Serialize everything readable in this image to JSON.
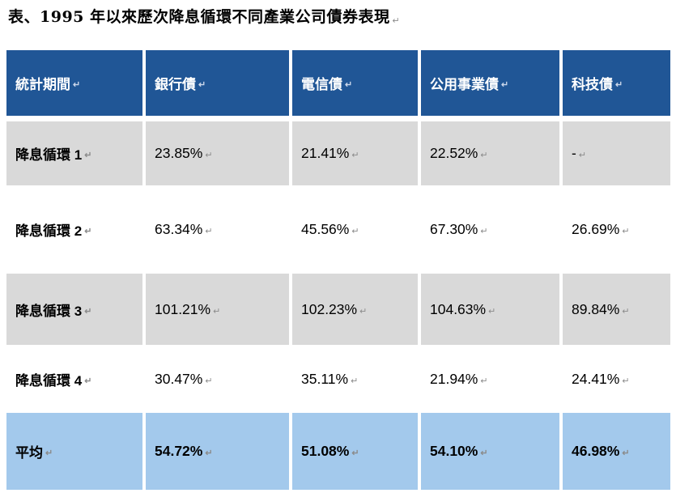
{
  "title": "表、1995 年以來歷次降息循環不同產業公司債券表現",
  "paragraph_mark": "↵",
  "colors": {
    "header_bg": "#205696",
    "header_text": "#ffffff",
    "gray_row_bg": "#d9d9d9",
    "white_row_bg": "#ffffff",
    "average_row_bg": "#a3c9ec",
    "body_text": "#000000"
  },
  "table": {
    "columns": [
      "統計期間",
      "銀行債",
      "電信債",
      "公用事業債",
      "科技債"
    ],
    "rows": [
      {
        "label": "降息循環 1",
        "values": [
          "23.85%",
          "21.41%",
          "22.52%",
          "-"
        ],
        "style": "gray"
      },
      {
        "label": "降息循環 2",
        "values": [
          "63.34%",
          "45.56%",
          "67.30%",
          "26.69%"
        ],
        "style": "white"
      },
      {
        "label": "降息循環 3",
        "values": [
          "101.21%",
          "102.23%",
          "104.63%",
          "89.84%"
        ],
        "style": "gray"
      },
      {
        "label": "降息循環 4",
        "values": [
          "30.47%",
          "35.11%",
          "21.94%",
          "24.41%"
        ],
        "style": "white"
      },
      {
        "label": "平均",
        "values": [
          "54.72%",
          "51.08%",
          "54.10%",
          "46.98%"
        ],
        "style": "average"
      }
    ]
  },
  "chart_data": {
    "type": "table",
    "title": "表、1995 年以來歷次降息循環不同產業公司債券表現",
    "columns": [
      "統計期間",
      "銀行債",
      "電信債",
      "公用事業債",
      "科技債"
    ],
    "rows": [
      [
        "降息循環 1",
        "23.85%",
        "21.41%",
        "22.52%",
        "-"
      ],
      [
        "降息循環 2",
        "63.34%",
        "45.56%",
        "67.30%",
        "26.69%"
      ],
      [
        "降息循環 3",
        "101.21%",
        "102.23%",
        "104.63%",
        "89.84%"
      ],
      [
        "降息循環 4",
        "30.47%",
        "35.11%",
        "21.94%",
        "24.41%"
      ],
      [
        "平均",
        "54.72%",
        "51.08%",
        "54.10%",
        "46.98%"
      ]
    ]
  }
}
